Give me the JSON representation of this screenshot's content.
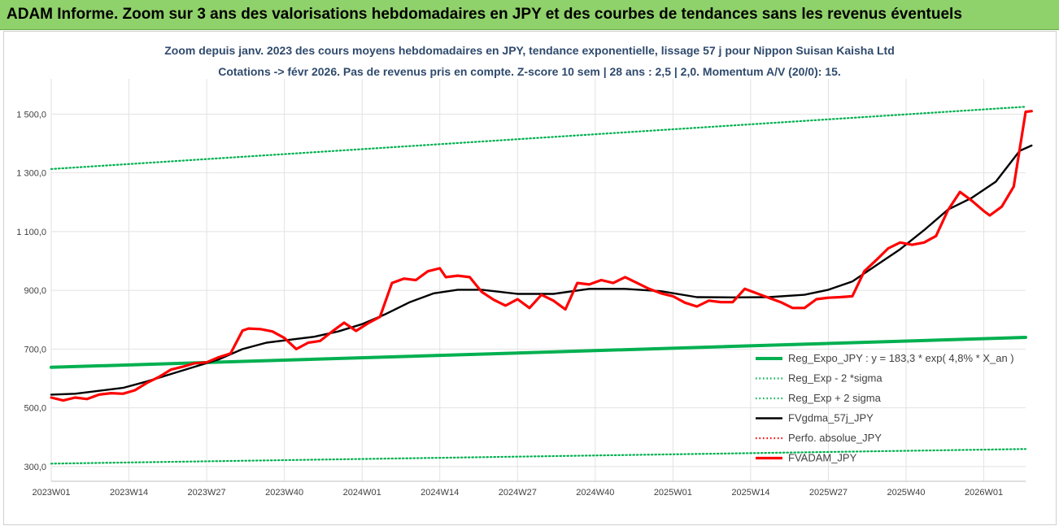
{
  "banner": {
    "title": "ADAM Informe. Zoom sur 3 ans des valorisations hebdomadaires en JPY et des courbes de tendances sans les revenus éventuels",
    "color": "#8fd16a"
  },
  "chart_data": {
    "type": "line",
    "title_line1": "Zoom depuis janv. 2023 des cours moyens hebdomadaires en JPY, tendance exponentielle, lissage 57 j pour Nippon Suisan Kaisha Ltd",
    "title_line2": "Cotations -> févr 2026. Pas de revenus pris en compte. Z-score 10 sem | 28 ans : 2,5 | 2,0. Momentum A/V (20/0): 15.",
    "ylim": [
      250,
      1620
    ],
    "yticks": [
      "300,0",
      "500,0",
      "700,0",
      "900,0",
      "1 100,0",
      "1 300,0",
      "1 500,0"
    ],
    "ytick_values": [
      300,
      500,
      700,
      900,
      1100,
      1300,
      1500
    ],
    "xticks": [
      "2023W01",
      "2023W14",
      "2023W27",
      "2023W40",
      "2024W01",
      "2024W14",
      "2024W27",
      "2024W40",
      "2025W01",
      "2025W14",
      "2025W27",
      "2025W40",
      "2026W01"
    ],
    "xtick_index": [
      0,
      13,
      26,
      39,
      52,
      65,
      78,
      91,
      104,
      117,
      130,
      143,
      156
    ],
    "n_weeks": 164,
    "grid": true,
    "legend_position": "bottom-right",
    "series": [
      {
        "name": "Reg_Expo_JPY : y = 183,3 * exp( 4,8% *  X_an )",
        "color": "#00b050",
        "style": "thick",
        "x": [
          0,
          163
        ],
        "values": [
          638,
          740
        ]
      },
      {
        "name": "Reg_Exp - 2 *sigma",
        "color": "#00b050",
        "style": "dotted",
        "x": [
          0,
          163
        ],
        "values": [
          310,
          360
        ]
      },
      {
        "name": "Reg_Exp + 2 sigma",
        "color": "#00b050",
        "style": "dotted",
        "x": [
          0,
          163
        ],
        "values": [
          1313,
          1525
        ]
      },
      {
        "name": "FVgdma_57j_JPY",
        "color": "#000000",
        "style": "solid",
        "x": [
          0,
          4,
          8,
          12,
          16,
          20,
          24,
          28,
          32,
          36,
          40,
          44,
          48,
          52,
          56,
          60,
          64,
          68,
          72,
          78,
          84,
          90,
          96,
          102,
          108,
          114,
          120,
          126,
          130,
          134,
          138,
          142,
          146,
          150,
          154,
          158,
          162,
          164
        ],
        "values": [
          545,
          548,
          558,
          568,
          590,
          615,
          640,
          665,
          700,
          722,
          732,
          742,
          760,
          785,
          820,
          860,
          890,
          902,
          902,
          888,
          888,
          905,
          905,
          897,
          877,
          876,
          877,
          885,
          902,
          930,
          985,
          1040,
          1105,
          1175,
          1215,
          1270,
          1375,
          1393
        ]
      },
      {
        "name": "Perfo. absolue_JPY",
        "color": "#ff0000",
        "style": "dotted",
        "x": [],
        "values": []
      },
      {
        "name": "FVADAM_JPY",
        "color": "#ff0000",
        "style": "thick",
        "x": [
          0,
          2,
          4,
          6,
          8,
          10,
          12,
          14,
          16,
          18,
          20,
          22,
          24,
          26,
          28,
          30,
          32,
          33,
          35,
          37,
          39,
          41,
          43,
          45,
          47,
          49,
          51,
          53,
          55,
          57,
          59,
          61,
          63,
          65,
          66,
          68,
          70,
          72,
          74,
          76,
          78,
          80,
          82,
          84,
          86,
          88,
          90,
          92,
          94,
          96,
          98,
          100,
          102,
          104,
          106,
          108,
          110,
          112,
          114,
          116,
          118,
          120,
          122,
          124,
          126,
          128,
          130,
          132,
          134,
          136,
          138,
          140,
          142,
          144,
          146,
          148,
          150,
          152,
          154,
          156,
          157,
          159,
          161,
          163,
          164
        ],
        "values": [
          535,
          525,
          535,
          530,
          545,
          550,
          548,
          560,
          585,
          605,
          630,
          640,
          652,
          655,
          672,
          685,
          763,
          770,
          768,
          760,
          738,
          700,
          722,
          728,
          760,
          790,
          762,
          788,
          810,
          925,
          940,
          935,
          965,
          975,
          945,
          950,
          945,
          895,
          868,
          848,
          870,
          840,
          885,
          865,
          835,
          925,
          920,
          935,
          925,
          945,
          925,
          905,
          890,
          880,
          858,
          845,
          865,
          860,
          860,
          905,
          890,
          875,
          860,
          840,
          840,
          870,
          875,
          877,
          880,
          965,
          1003,
          1043,
          1063,
          1055,
          1063,
          1085,
          1173,
          1235,
          1205,
          1170,
          1155,
          1185,
          1253,
          1508,
          1510
        ]
      }
    ]
  }
}
